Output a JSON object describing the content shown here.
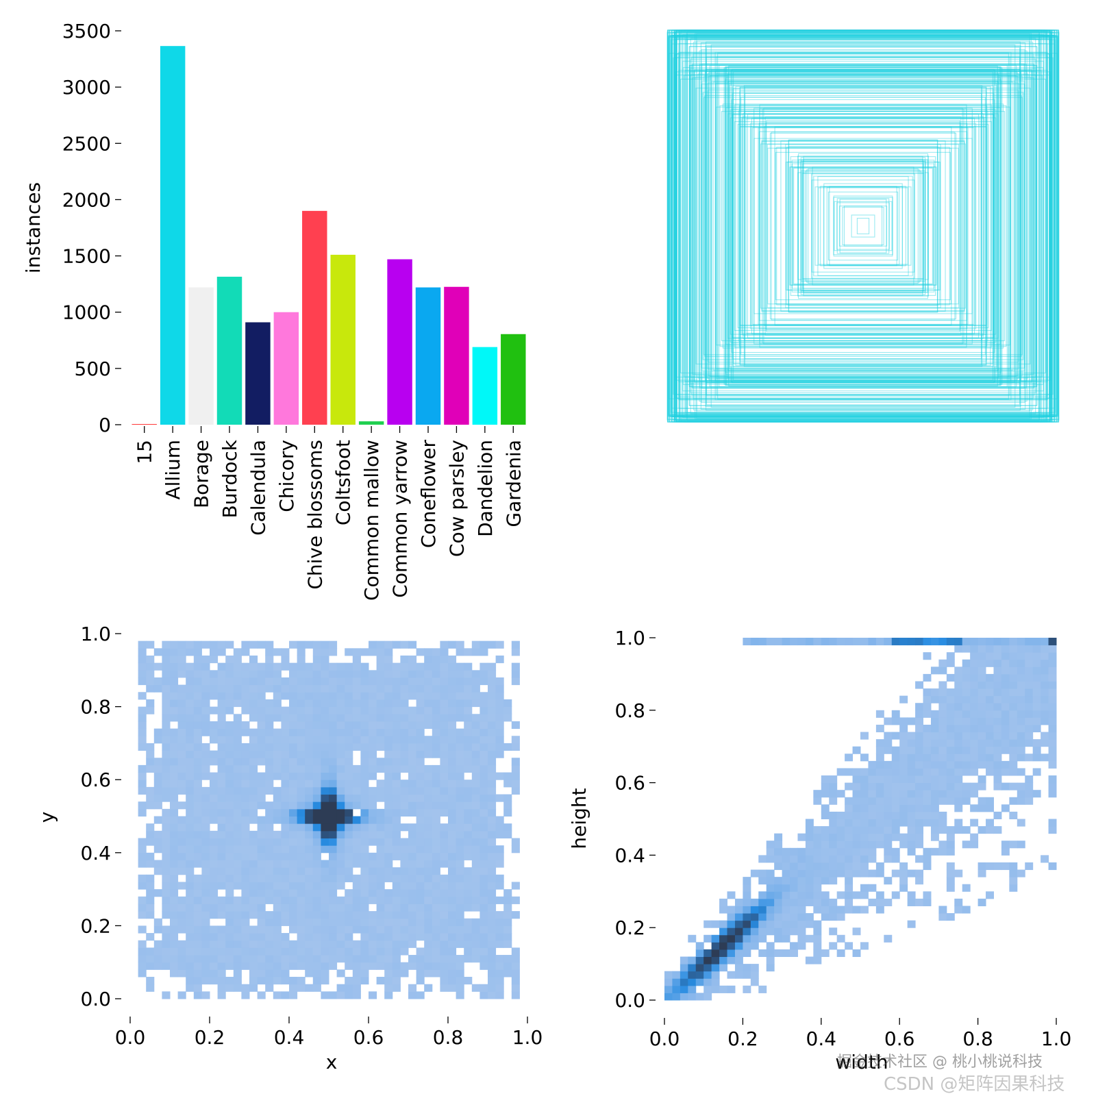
{
  "chart_data": [
    {
      "type": "bar",
      "title": "",
      "xlabel": "",
      "ylabel": "instances",
      "ylim": [
        0,
        3500
      ],
      "yticks": [
        0,
        500,
        1000,
        1500,
        2000,
        2500,
        3000,
        3500
      ],
      "grid": false,
      "categories": [
        "15",
        "Allium",
        "Borage",
        "Burdock",
        "Calendula",
        "Chicory",
        "Chive blossoms",
        "Coltsfoot",
        "Common mallow",
        "Common yarrow",
        "Coneflower",
        "Cow parsley",
        "Dandelion",
        "Gardenia"
      ],
      "values": [
        3,
        3365,
        1220,
        1315,
        910,
        1000,
        1900,
        1510,
        30,
        1470,
        1220,
        1225,
        690,
        805
      ],
      "colors": [
        "#ff3838",
        "#0fd8e8",
        "#f0f0f0",
        "#12dbb7",
        "#121d62",
        "#ff78dc",
        "#ff4050",
        "#c8e80c",
        "#20d050",
        "#b800f0",
        "#0aa8f0",
        "#e000b8",
        "#00f8f8",
        "#20c010"
      ]
    },
    {
      "type": "boxes",
      "title": "",
      "description_color": "#20d0e0",
      "xlim": [
        0,
        1
      ],
      "ylim": [
        0,
        1
      ],
      "grid": false
    },
    {
      "type": "heatmap",
      "title": "",
      "xlabel": "x",
      "ylabel": "y",
      "xlim": [
        0,
        1
      ],
      "ylim": [
        0,
        1
      ],
      "xticks": [
        0.0,
        0.2,
        0.4,
        0.6,
        0.8,
        1.0
      ],
      "yticks": [
        0.0,
        0.2,
        0.4,
        0.6,
        0.8,
        1.0
      ],
      "peak": [
        0.5,
        0.5
      ],
      "grid": false
    },
    {
      "type": "heatmap",
      "title": "",
      "xlabel": "width",
      "ylabel": "height",
      "xlim": [
        0,
        1
      ],
      "ylim": [
        0,
        1
      ],
      "xticks": [
        0.0,
        0.2,
        0.4,
        0.6,
        0.8,
        1.0
      ],
      "yticks": [
        0.0,
        0.2,
        0.4,
        0.6,
        0.8,
        1.0
      ],
      "peak": [
        0.15,
        0.15
      ],
      "grid": false
    }
  ],
  "watermark": {
    "line1": "掘金技术社区 @ 桃小桃说科技",
    "line2": "CSDN @矩阵因果科技"
  }
}
